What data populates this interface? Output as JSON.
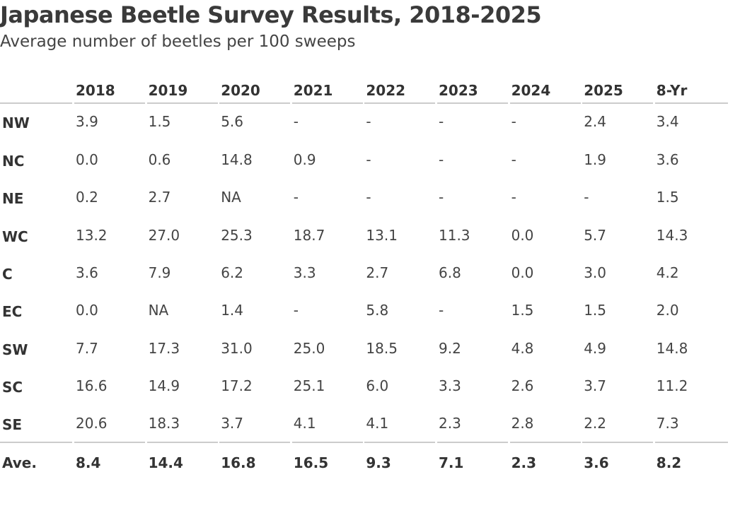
{
  "header": {
    "title": "Japanese Beetle Survey Results, 2018-2025",
    "subtitle": "Average number of beetles per 100 sweeps"
  },
  "table": {
    "columns": [
      "2018",
      "2019",
      "2020",
      "2021",
      "2022",
      "2023",
      "2024",
      "2025",
      "8-Yr"
    ],
    "rows": [
      [
        "NW",
        "3.9",
        "1.5",
        "5.6",
        "-",
        "-",
        "-",
        "-",
        "2.4",
        "3.4"
      ],
      [
        "NC",
        "0.0",
        "0.6",
        "14.8",
        "0.9",
        "-",
        "-",
        "-",
        "1.9",
        "3.6"
      ],
      [
        "NE",
        "0.2",
        "2.7",
        "NA",
        "-",
        "-",
        "-",
        "-",
        "-",
        "1.5"
      ],
      [
        "WC",
        "13.2",
        "27.0",
        "25.3",
        "18.7",
        "13.1",
        "11.3",
        "0.0",
        "5.7",
        "14.3"
      ],
      [
        "C",
        "3.6",
        "7.9",
        "6.2",
        "3.3",
        "2.7",
        "6.8",
        "0.0",
        "3.0",
        "4.2"
      ],
      [
        "EC",
        "0.0",
        "NA",
        "1.4",
        "-",
        "5.8",
        "-",
        "1.5",
        "1.5",
        "2.0"
      ],
      [
        "SW",
        "7.7",
        "17.3",
        "31.0",
        "25.0",
        "18.5",
        "9.2",
        "4.8",
        "4.9",
        "14.8"
      ],
      [
        "SC",
        "16.6",
        "14.9",
        "17.2",
        "25.1",
        "6.0",
        "3.3",
        "2.6",
        "3.7",
        "11.2"
      ],
      [
        "SE",
        "20.6",
        "18.3",
        "3.7",
        "4.1",
        "4.1",
        "2.3",
        "2.8",
        "2.2",
        "7.3"
      ]
    ],
    "footer": [
      "Ave.",
      "8.4",
      "14.4",
      "16.8",
      "16.5",
      "9.3",
      "7.1",
      "2.3",
      "3.6",
      "8.2"
    ]
  }
}
